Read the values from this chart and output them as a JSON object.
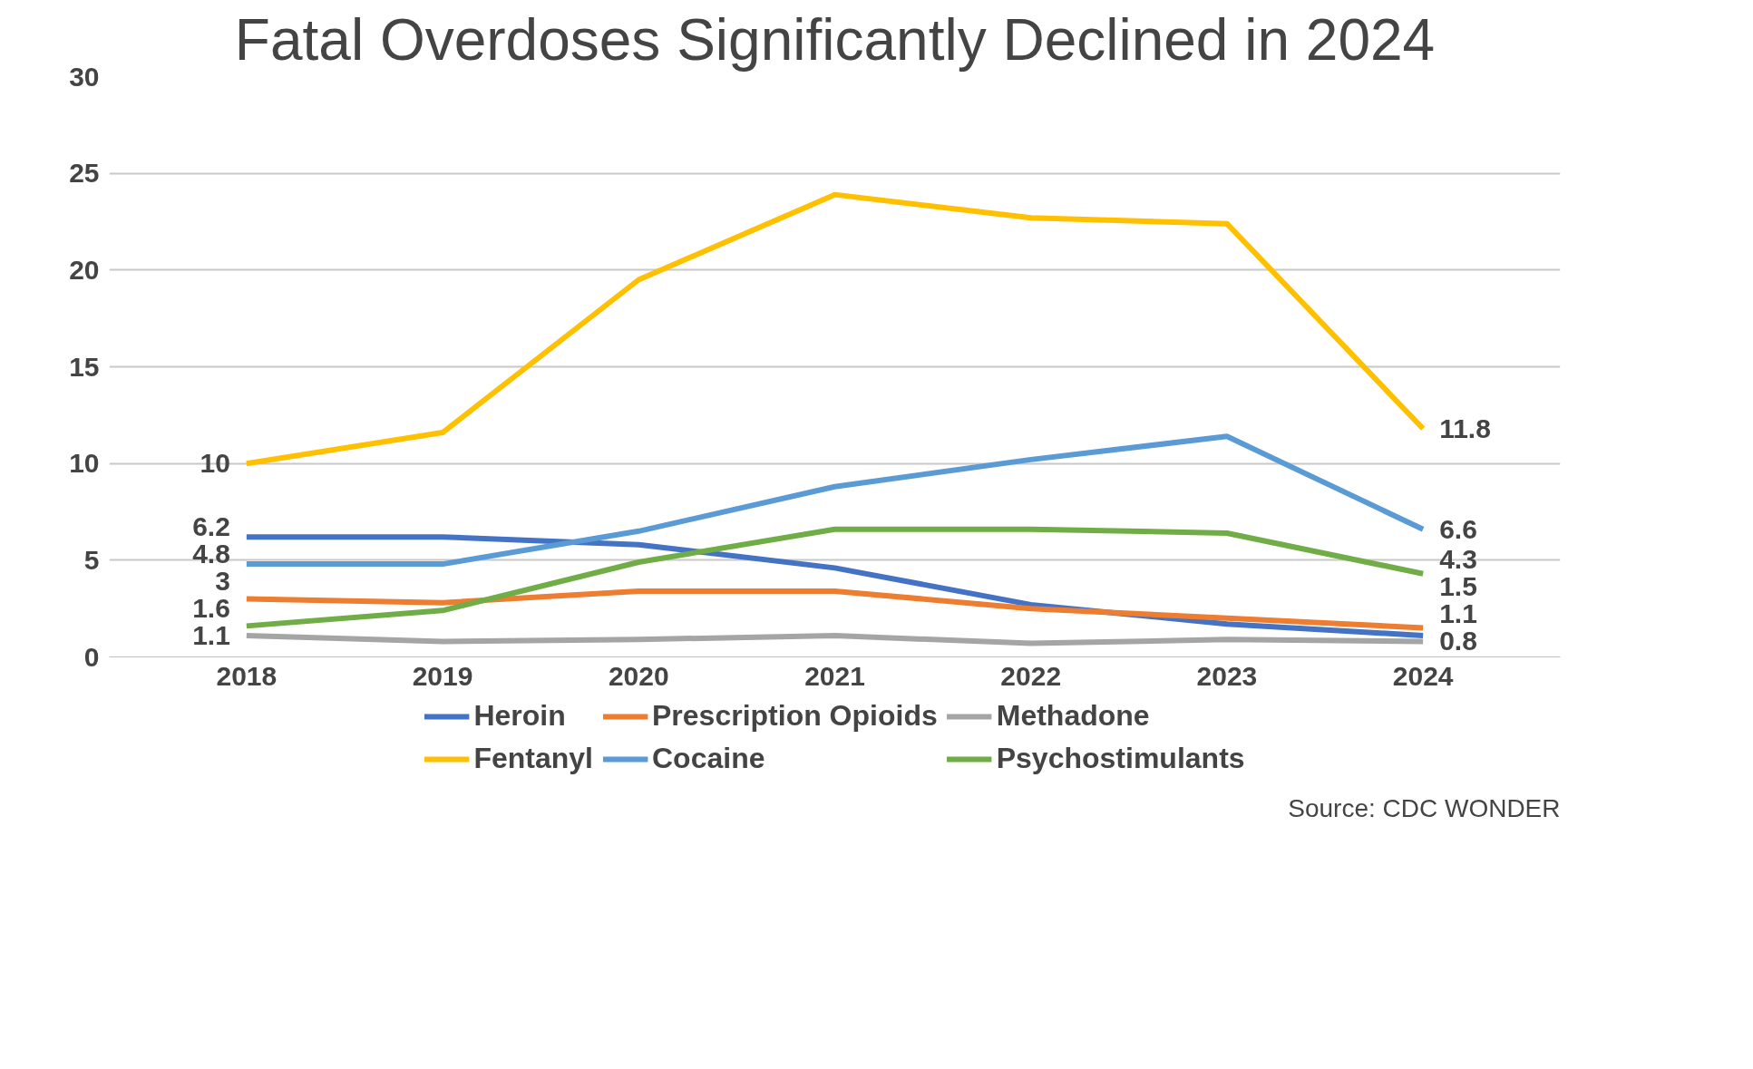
{
  "chart_data": {
    "type": "line",
    "title": "Fatal Overdoses Significantly Declined in 2024",
    "categories": [
      "2018",
      "2019",
      "2020",
      "2021",
      "2022",
      "2023",
      "2024"
    ],
    "series": [
      {
        "name": "Heroin",
        "color": "#4472c4",
        "values": [
          6.2,
          6.2,
          5.8,
          4.6,
          2.7,
          1.7,
          1.1
        ],
        "value_labels": [
          "6.2",
          null,
          null,
          null,
          null,
          null,
          "1.1"
        ]
      },
      {
        "name": "Prescription Opioids",
        "color": "#ed7d31",
        "values": [
          3,
          2.8,
          3.4,
          3.4,
          2.5,
          2.0,
          1.5
        ],
        "value_labels": [
          "3",
          null,
          null,
          null,
          null,
          null,
          "1.5"
        ]
      },
      {
        "name": "Methadone",
        "color": "#a5a5a5",
        "values": [
          1.1,
          0.8,
          0.9,
          1.1,
          0.7,
          0.9,
          0.8
        ],
        "value_labels": [
          "1.1",
          null,
          null,
          null,
          null,
          null,
          "0.8"
        ]
      },
      {
        "name": "Fentanyl",
        "color": "#ffc000",
        "values": [
          10,
          11.6,
          19.5,
          23.9,
          22.7,
          22.4,
          11.8
        ],
        "value_labels": [
          "10",
          null,
          null,
          null,
          null,
          null,
          "11.8"
        ]
      },
      {
        "name": "Cocaine",
        "color": "#5b9bd5",
        "values": [
          4.8,
          4.8,
          6.5,
          8.8,
          10.2,
          11.4,
          6.6
        ],
        "value_labels": [
          "4.8",
          null,
          null,
          null,
          null,
          null,
          "6.6"
        ]
      },
      {
        "name": "Psychostimulants",
        "color": "#70ad47",
        "values": [
          1.6,
          2.4,
          4.9,
          6.6,
          6.6,
          6.4,
          4.3
        ],
        "value_labels": [
          "1.6",
          null,
          null,
          null,
          null,
          null,
          "4.3"
        ]
      }
    ],
    "ylim": [
      0,
      30
    ],
    "yticks": [
      0,
      5,
      10,
      15,
      20,
      25,
      30
    ],
    "grid": "y",
    "legend": "bottom",
    "marker": "none",
    "line_style": "solid",
    "annotations": [
      "Source: CDC WONDER"
    ]
  }
}
